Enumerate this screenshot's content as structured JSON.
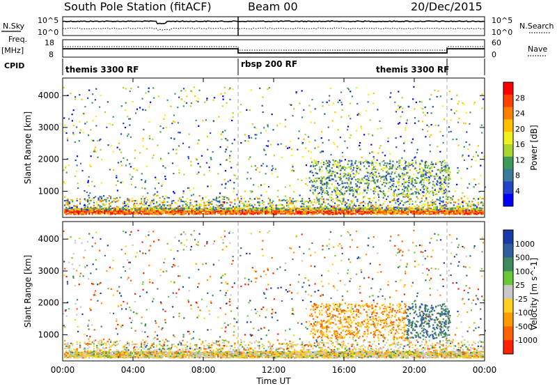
{
  "header": {
    "station": "South Pole Station (fitACF)",
    "beam": "Beam 00",
    "date": "20/Dec/2015"
  },
  "status_panels": {
    "nsky": {
      "label": "N.Sky",
      "tick_top": "10^5",
      "tick_bottom": "10^0",
      "right_label": "N.Search",
      "right_tick_top": "10^5",
      "right_tick_bottom": "10^0"
    },
    "freq": {
      "label_line1": "Freq.",
      "label_line2": "[MHz]",
      "tick_top": "18",
      "tick_bottom": "8",
      "right_label": "Nave",
      "right_tick_top": "60",
      "right_tick_bottom": "0"
    },
    "cpid": {
      "label": "CPID",
      "segments": [
        {
          "name": "themis 3300 RF",
          "start_hour": 0,
          "end_hour": 10
        },
        {
          "name": "rbsp 200 RF",
          "start_hour": 10,
          "end_hour": 21.85
        },
        {
          "name": "themis 3300 RF",
          "start_hour": 21.85,
          "end_hour": 24
        }
      ]
    }
  },
  "chart_data": [
    {
      "type": "heatmap",
      "title": "",
      "ylabel": "Slant Range [km]",
      "ylim": [
        180,
        4550
      ],
      "yticks": [
        1000,
        2000,
        3000,
        4000
      ],
      "colorbar": {
        "label": "Power [dB]",
        "ticks": [
          "4",
          "8",
          "12",
          "16",
          "20",
          "24",
          "28"
        ],
        "colors": [
          "#0000ff",
          "#2244cc",
          "#3a7a9a",
          "#3c9a5a",
          "#a8d630",
          "#f0f020",
          "#ffc000",
          "#ff8000",
          "#ff4000",
          "#ff0000"
        ]
      },
      "features": [
        {
          "range_km_min": 280,
          "range_km_max": 450,
          "start_hour": 0,
          "end_hour": 24,
          "intensity": "high"
        }
      ]
    },
    {
      "type": "heatmap",
      "title": "",
      "ylabel": "Slant Range [km]",
      "xlabel": "Time UT",
      "ylim": [
        180,
        4550
      ],
      "yticks": [
        1000,
        2000,
        3000,
        4000
      ],
      "colorbar": {
        "label": "Velocity [m s^-1]",
        "ticks": [
          "1000",
          "500",
          "100",
          "25",
          "-25",
          "-100",
          "-500",
          "-1000"
        ],
        "colors": [
          "#1a3aaa",
          "#2f5f9f",
          "#3f8a5a",
          "#68c838",
          "#c8c8c8",
          "#ffd020",
          "#ff9a00",
          "#ff6000",
          "#ff2000"
        ]
      },
      "features": [
        {
          "range_km_min": 280,
          "range_km_max": 450,
          "start_hour": 0,
          "end_hour": 24,
          "intensity": "ground scatter"
        }
      ]
    }
  ],
  "time_axis": {
    "xlabel": "Time UT",
    "ticks": [
      "00:00",
      "04:00",
      "08:00",
      "12:00",
      "16:00",
      "20:00",
      "00:00"
    ],
    "xlim_hours": [
      0,
      24
    ]
  },
  "colors": {
    "marker_line": "#aaaaaa",
    "axes": "#000000"
  }
}
